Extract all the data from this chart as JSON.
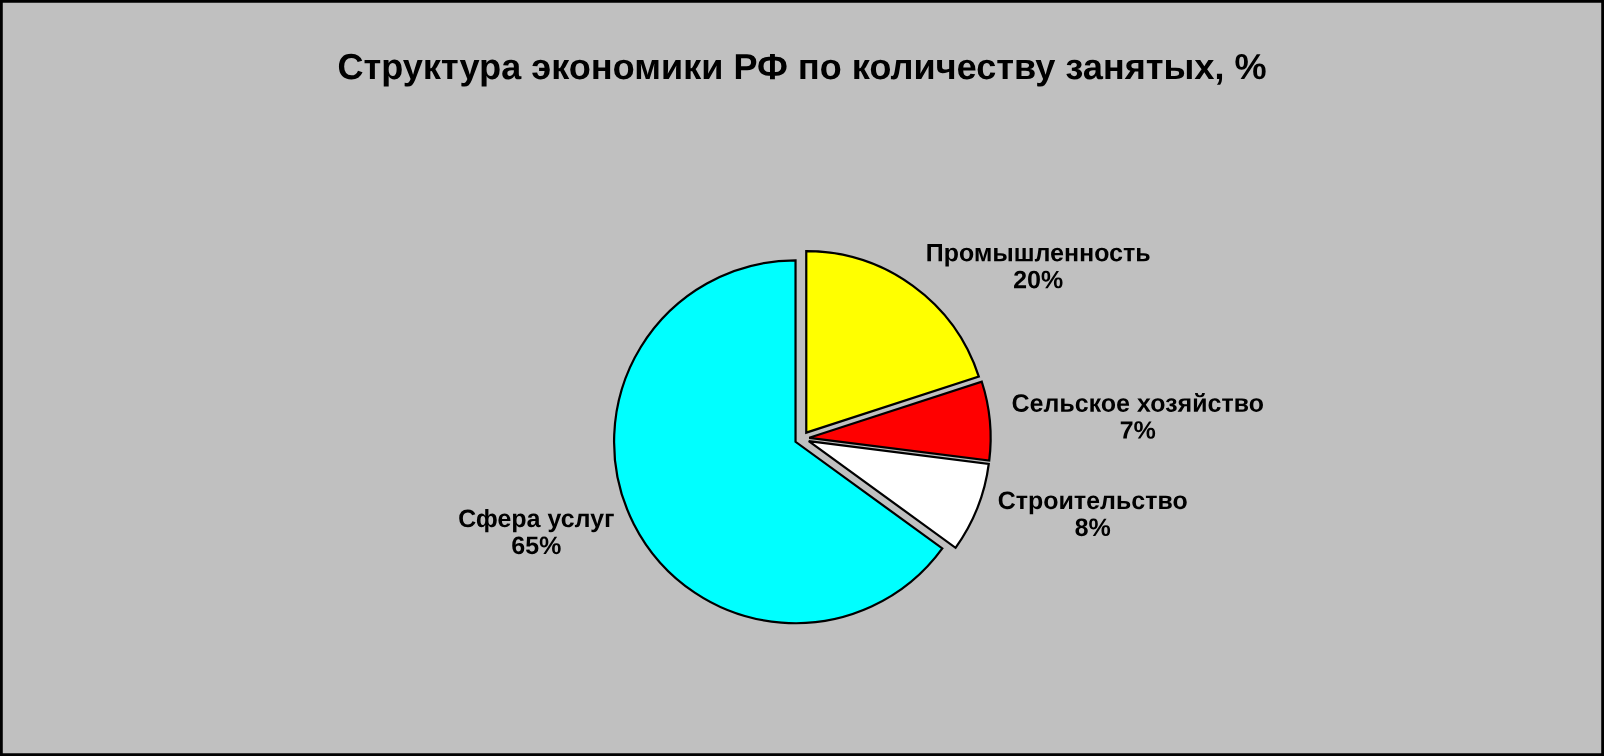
{
  "chart_data": {
    "type": "pie",
    "title": "Структура экономики РФ по количеству занятых, %",
    "categories": [
      "Промышленность",
      "Сельское хозяйство",
      "Строительство",
      "Сфера услуг"
    ],
    "values": [
      20,
      7,
      8,
      65
    ],
    "value_labels": [
      "20%",
      "7%",
      "8%",
      "65%"
    ],
    "colors": [
      "#ffff00",
      "#ff0000",
      "#ffffff",
      "#00ffff"
    ]
  }
}
